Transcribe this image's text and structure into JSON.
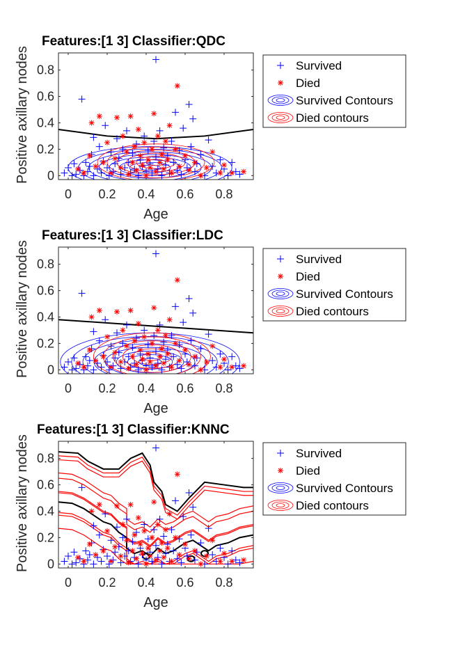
{
  "chart_data": [
    {
      "type": "scatter",
      "title": "Features:[1 3]  Classifier:QDC",
      "xlabel": "Age",
      "ylabel": "Positive axillary nodes",
      "xlim": [
        -0.05,
        0.95
      ],
      "ylim": [
        -0.03,
        0.93
      ],
      "xticks": [
        0,
        0.2,
        0.4,
        0.6,
        0.8
      ],
      "yticks": [
        0,
        0.2,
        0.4,
        0.6,
        0.8
      ],
      "legend": [
        "Survived",
        "Died",
        "Survived Contours",
        "Died contours"
      ],
      "legend_position": "outside-right",
      "boundary": "quadratic",
      "boundary_points": [
        [
          -0.05,
          0.35
        ],
        [
          0.2,
          0.3
        ],
        [
          0.45,
          0.28
        ],
        [
          0.7,
          0.3
        ],
        [
          0.95,
          0.35
        ]
      ]
    },
    {
      "type": "scatter",
      "title": "Features:[1 3]  Classifier:LDC",
      "xlabel": "Age",
      "ylabel": "Positive axillary nodes",
      "xlim": [
        -0.05,
        0.95
      ],
      "ylim": [
        -0.03,
        0.93
      ],
      "xticks": [
        0,
        0.2,
        0.4,
        0.6,
        0.8
      ],
      "yticks": [
        0,
        0.2,
        0.4,
        0.6,
        0.8
      ],
      "legend": [
        "Survived",
        "Died",
        "Survived Contours",
        "Died contours"
      ],
      "legend_position": "outside-right",
      "boundary": "linear",
      "boundary_points": [
        [
          -0.05,
          0.38
        ],
        [
          0.95,
          0.28
        ]
      ]
    },
    {
      "type": "scatter",
      "title": "Features:[1 3]  Classifier:KNNC",
      "xlabel": "Age",
      "ylabel": "Positive axillary nodes",
      "xlim": [
        -0.05,
        0.95
      ],
      "ylim": [
        -0.03,
        0.93
      ],
      "xticks": [
        0,
        0.2,
        0.4,
        0.6,
        0.8
      ],
      "yticks": [
        0,
        0.2,
        0.4,
        0.6,
        0.8
      ],
      "legend": [
        "Survived",
        "Died",
        "Survived Contours",
        "Died contours"
      ],
      "legend_position": "outside-right",
      "boundary": "knn",
      "boundary_points": [
        [
          -0.05,
          0.47
        ],
        [
          0.02,
          0.46
        ],
        [
          0.08,
          0.42
        ],
        [
          0.14,
          0.36
        ],
        [
          0.18,
          0.32
        ],
        [
          0.22,
          0.3
        ],
        [
          0.26,
          0.24
        ],
        [
          0.3,
          0.2
        ],
        [
          0.3,
          0.12
        ],
        [
          0.34,
          0.08
        ],
        [
          0.38,
          0.1
        ],
        [
          0.42,
          0.06
        ],
        [
          0.46,
          0.12
        ],
        [
          0.5,
          0.08
        ],
        [
          0.54,
          0.1
        ],
        [
          0.6,
          0.16
        ],
        [
          0.64,
          0.18
        ],
        [
          0.68,
          0.14
        ],
        [
          0.72,
          0.1
        ],
        [
          0.76,
          0.14
        ],
        [
          0.82,
          0.16
        ],
        [
          0.88,
          0.2
        ],
        [
          0.95,
          0.22
        ]
      ]
    }
  ],
  "points": {
    "survived": [
      [
        -0.02,
        0.02
      ],
      [
        0.0,
        0.06
      ],
      [
        0.02,
        0.0
      ],
      [
        0.03,
        0.09
      ],
      [
        0.04,
        0.01
      ],
      [
        0.06,
        0.04
      ],
      [
        0.07,
        0.58
      ],
      [
        0.08,
        0.0
      ],
      [
        0.09,
        0.1
      ],
      [
        0.1,
        0.03
      ],
      [
        0.11,
        0.07
      ],
      [
        0.12,
        0.16
      ],
      [
        0.13,
        0.29
      ],
      [
        0.13,
        0.0
      ],
      [
        0.15,
        0.05
      ],
      [
        0.16,
        0.22
      ],
      [
        0.17,
        0.02
      ],
      [
        0.18,
        0.11
      ],
      [
        0.19,
        0.38
      ],
      [
        0.2,
        0.06
      ],
      [
        0.21,
        0.0
      ],
      [
        0.22,
        0.18
      ],
      [
        0.23,
        0.03
      ],
      [
        0.24,
        0.09
      ],
      [
        0.25,
        0.28
      ],
      [
        0.26,
        0.13
      ],
      [
        0.27,
        0.01
      ],
      [
        0.28,
        0.2
      ],
      [
        0.29,
        0.06
      ],
      [
        0.3,
        0.34
      ],
      [
        0.31,
        0.1
      ],
      [
        0.32,
        0.02
      ],
      [
        0.33,
        0.17
      ],
      [
        0.34,
        0.05
      ],
      [
        0.35,
        0.24
      ],
      [
        0.36,
        0.0
      ],
      [
        0.37,
        0.12
      ],
      [
        0.38,
        0.07
      ],
      [
        0.39,
        0.3
      ],
      [
        0.4,
        0.03
      ],
      [
        0.41,
        0.19
      ],
      [
        0.42,
        0.09
      ],
      [
        0.43,
        0.02
      ],
      [
        0.44,
        0.26
      ],
      [
        0.45,
        0.88
      ],
      [
        0.45,
        0.14
      ],
      [
        0.46,
        0.05
      ],
      [
        0.47,
        0.34
      ],
      [
        0.48,
        0.0
      ],
      [
        0.49,
        0.21
      ],
      [
        0.5,
        0.08
      ],
      [
        0.51,
        0.15
      ],
      [
        0.52,
        0.02
      ],
      [
        0.53,
        0.26
      ],
      [
        0.54,
        0.1
      ],
      [
        0.55,
        0.48
      ],
      [
        0.56,
        0.04
      ],
      [
        0.57,
        0.19
      ],
      [
        0.58,
        0.01
      ],
      [
        0.59,
        0.36
      ],
      [
        0.6,
        0.12
      ],
      [
        0.61,
        0.06
      ],
      [
        0.62,
        0.54
      ],
      [
        0.63,
        0.22
      ],
      [
        0.64,
        0.43
      ],
      [
        0.65,
        0.03
      ],
      [
        0.66,
        0.09
      ],
      [
        0.68,
        0.16
      ],
      [
        0.7,
        0.0
      ],
      [
        0.72,
        0.27
      ],
      [
        0.74,
        0.07
      ],
      [
        0.76,
        0.02
      ],
      [
        0.78,
        0.12
      ],
      [
        0.8,
        0.05
      ],
      [
        0.82,
        0.0
      ],
      [
        0.84,
        0.1
      ],
      [
        0.86,
        0.03
      ],
      [
        0.88,
        0.01
      ]
    ],
    "died": [
      [
        0.05,
        0.05
      ],
      [
        0.08,
        0.02
      ],
      [
        0.11,
        0.15
      ],
      [
        0.12,
        0.4
      ],
      [
        0.14,
        0.07
      ],
      [
        0.16,
        0.45
      ],
      [
        0.18,
        0.1
      ],
      [
        0.2,
        0.25
      ],
      [
        0.22,
        0.02
      ],
      [
        0.24,
        0.13
      ],
      [
        0.25,
        0.44
      ],
      [
        0.27,
        0.06
      ],
      [
        0.28,
        0.3
      ],
      [
        0.3,
        0.18
      ],
      [
        0.31,
        0.01
      ],
      [
        0.32,
        0.45
      ],
      [
        0.33,
        0.1
      ],
      [
        0.34,
        0.22
      ],
      [
        0.35,
        0.04
      ],
      [
        0.36,
        0.35
      ],
      [
        0.37,
        0.15
      ],
      [
        0.38,
        0.08
      ],
      [
        0.39,
        0.25
      ],
      [
        0.4,
        0.0
      ],
      [
        0.41,
        0.12
      ],
      [
        0.42,
        0.06
      ],
      [
        0.43,
        0.2
      ],
      [
        0.44,
        0.47
      ],
      [
        0.45,
        0.03
      ],
      [
        0.46,
        0.3
      ],
      [
        0.47,
        0.1
      ],
      [
        0.48,
        0.16
      ],
      [
        0.49,
        0.05
      ],
      [
        0.5,
        0.26
      ],
      [
        0.51,
        0.12
      ],
      [
        0.52,
        0.38
      ],
      [
        0.53,
        0.02
      ],
      [
        0.55,
        0.2
      ],
      [
        0.56,
        0.68
      ],
      [
        0.57,
        0.07
      ],
      [
        0.6,
        0.15
      ],
      [
        0.62,
        0.04
      ],
      [
        0.65,
        0.1
      ],
      [
        0.68,
        0.0
      ],
      [
        0.71,
        0.06
      ],
      [
        0.74,
        0.18
      ],
      [
        0.78,
        0.02
      ],
      [
        0.8,
        0.08
      ],
      [
        0.84,
        0.02
      ],
      [
        0.9,
        0.03
      ]
    ]
  },
  "colors": {
    "survived": "#0000ff",
    "died": "#ff0000",
    "boundary": "#000000",
    "axes": "#262626"
  }
}
